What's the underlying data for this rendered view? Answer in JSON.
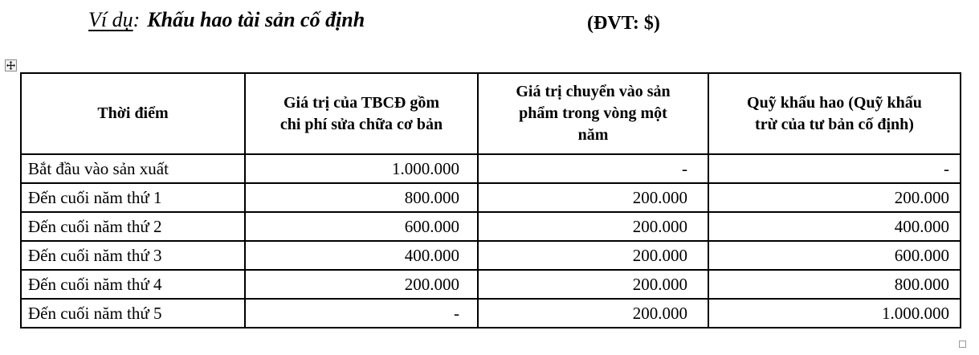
{
  "heading": {
    "example_label": "Ví dụ",
    "colon": ":",
    "title": "Khấu hao tài sản cố định",
    "unit": "(ĐVT: $)"
  },
  "table": {
    "columns": [
      [
        "Thời điểm"
      ],
      [
        "Giá trị của TBCĐ gồm",
        "chi phí sửa chữa cơ bản"
      ],
      [
        "Giá trị chuyển vào sản",
        "phẩm trong vòng một",
        "năm"
      ],
      [
        "Quỹ khấu hao (Quỹ khấu",
        "trừ của tư bản cố định)"
      ]
    ],
    "rows": [
      [
        "Bắt đầu vào sản xuất",
        "1.000.000",
        "-",
        "-"
      ],
      [
        "Đến cuối năm thứ 1",
        "800.000",
        "200.000",
        "200.000"
      ],
      [
        "Đến cuối năm thứ 2",
        "600.000",
        "200.000",
        "400.000"
      ],
      [
        "Đến cuối năm thứ 3",
        "400.000",
        "200.000",
        "600.000"
      ],
      [
        "Đến cuối năm thứ 4",
        "200.000",
        "200.000",
        "800.000"
      ],
      [
        "Đến cuối năm thứ 5",
        "-",
        "200.000",
        "1.000.000"
      ]
    ]
  },
  "icons": {
    "move_handle": "table-move-handle",
    "resize_handle": "table-resize-handle"
  },
  "colors": {
    "text": "#000000",
    "border": "#000000",
    "handle_border": "#8a8a8a",
    "background": "#ffffff"
  }
}
